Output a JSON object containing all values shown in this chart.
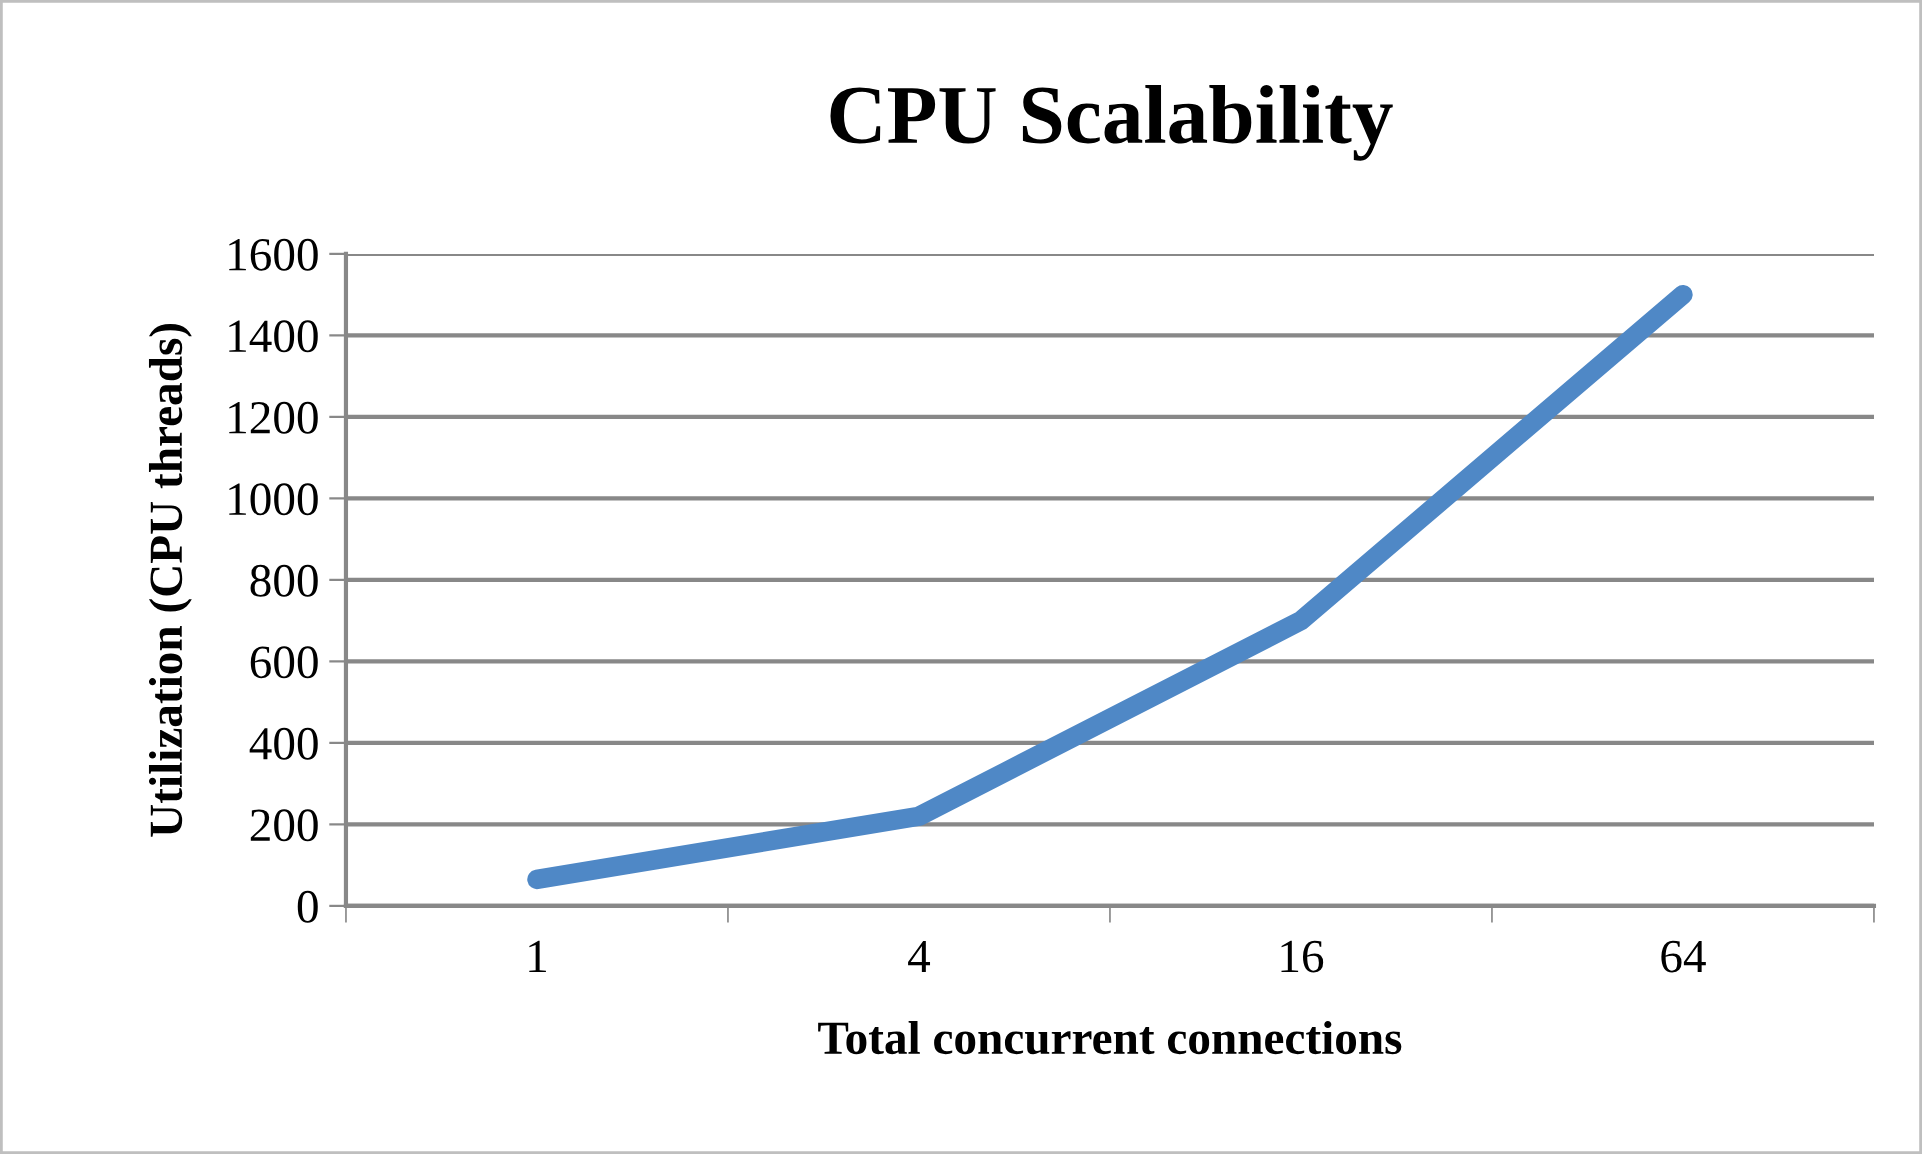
{
  "chart_data": {
    "type": "line",
    "title": "CPU Scalability",
    "xlabel": "Total concurrent connections",
    "ylabel": "Utilization (CPU threads)",
    "categories": [
      "1",
      "4",
      "16",
      "64"
    ],
    "series": [
      {
        "color": "#4f88c6",
        "values": [
          65,
          220,
          700,
          1500
        ]
      }
    ],
    "ylim": [
      0,
      1600
    ],
    "yticks": [
      0,
      200,
      400,
      600,
      800,
      1000,
      1200,
      1400,
      1600
    ],
    "grid": "y",
    "legend": false,
    "marker": "none",
    "line_style": "solid"
  }
}
